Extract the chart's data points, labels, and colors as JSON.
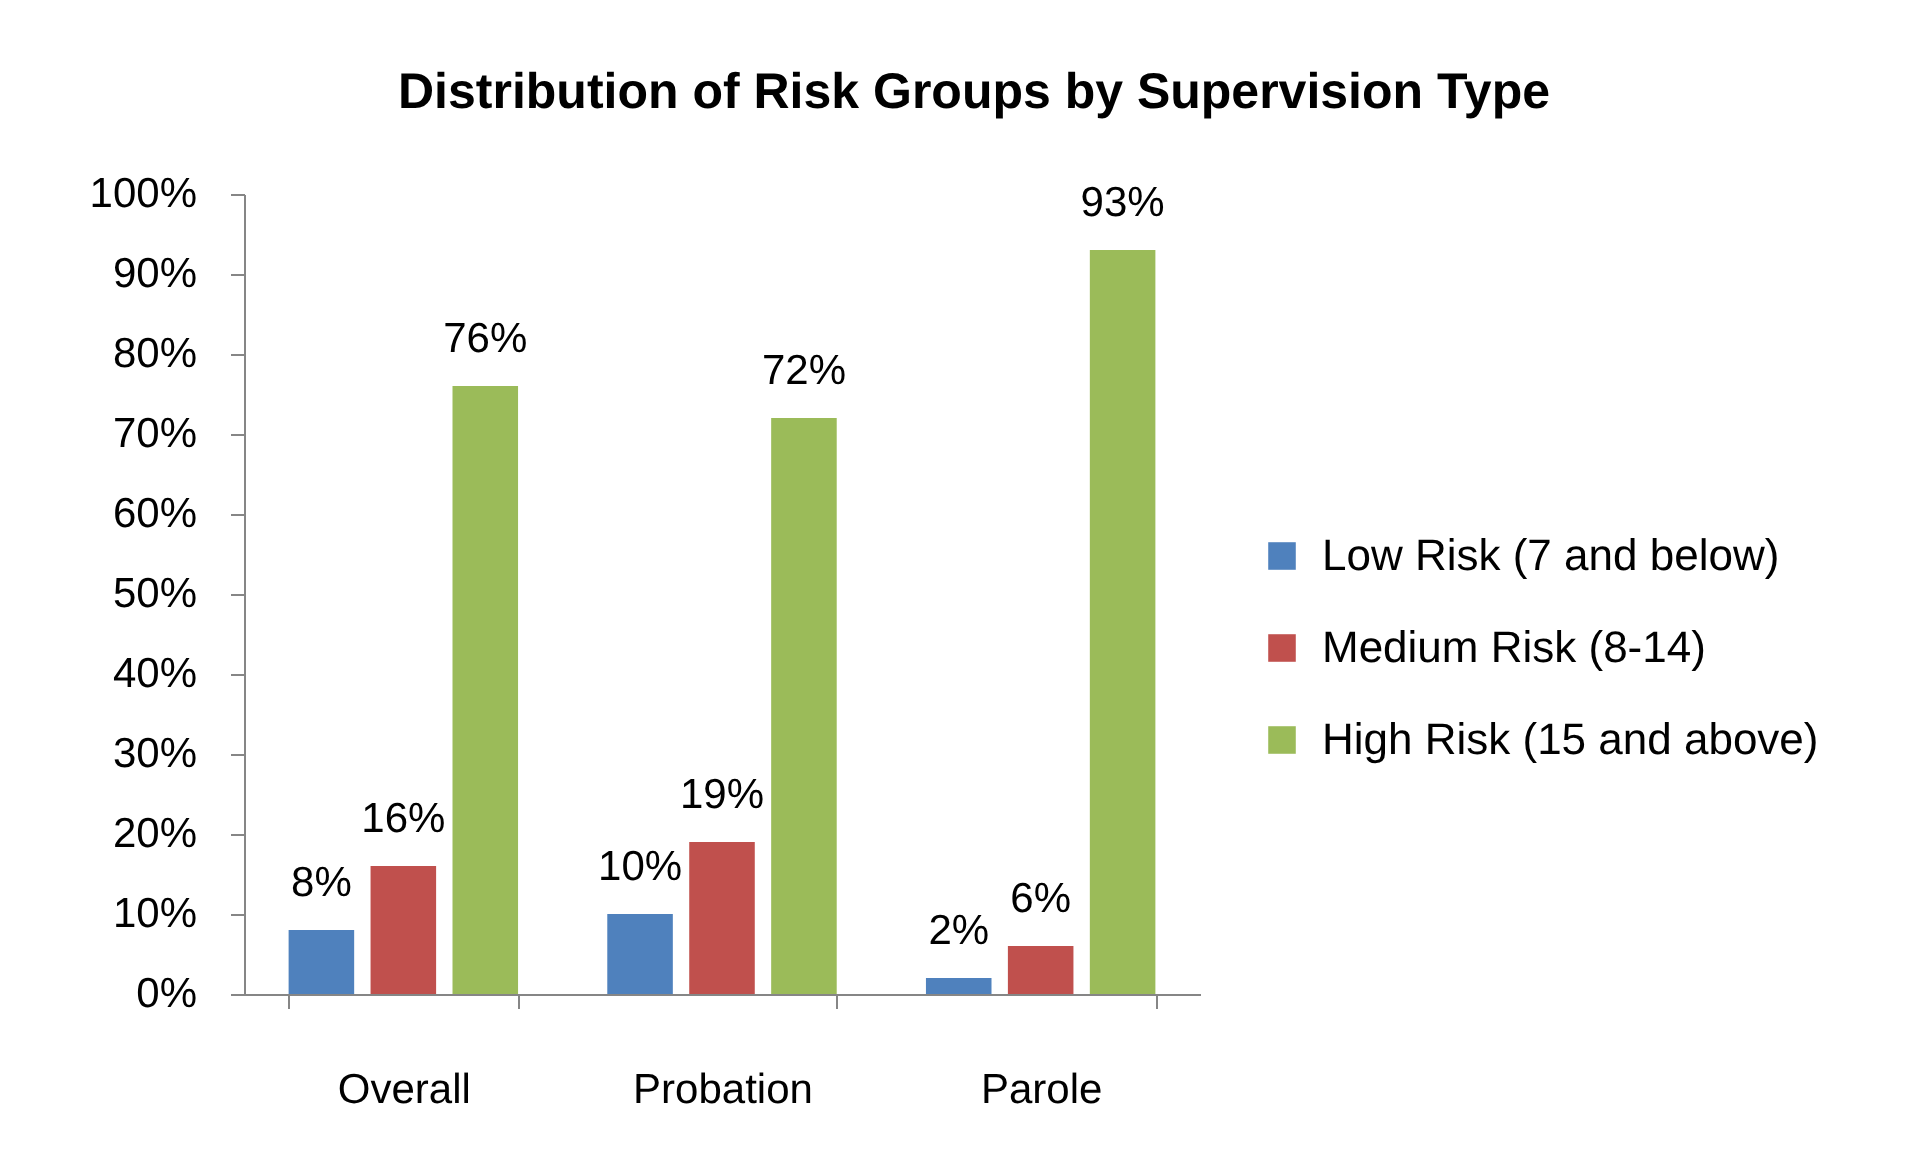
{
  "chart_data": {
    "type": "bar",
    "title": "Distribution of Risk Groups by Supervision Type",
    "categories": [
      "Overall",
      "Probation",
      "Parole"
    ],
    "series": [
      {
        "name": "Low Risk (7 and below)",
        "color": "#4f81bd",
        "values": [
          8,
          10,
          2
        ],
        "value_labels": [
          "8%",
          "10%",
          "2%"
        ]
      },
      {
        "name": "Medium Risk (8-14)",
        "color": "#c0504d",
        "values": [
          16,
          19,
          6
        ],
        "value_labels": [
          "16%",
          "19%",
          "6%"
        ]
      },
      {
        "name": "High Risk (15 and above)",
        "color": "#9bbb59",
        "values": [
          76,
          72,
          93
        ],
        "value_labels": [
          "76%",
          "72%",
          "93%"
        ]
      }
    ],
    "ylim": [
      0,
      100
    ],
    "yticks": [
      {
        "value": 0,
        "label": "0%"
      },
      {
        "value": 10,
        "label": "10%"
      },
      {
        "value": 20,
        "label": "20%"
      },
      {
        "value": 30,
        "label": "30%"
      },
      {
        "value": 40,
        "label": "40%"
      },
      {
        "value": 50,
        "label": "50%"
      },
      {
        "value": 60,
        "label": "60%"
      },
      {
        "value": 70,
        "label": "70%"
      },
      {
        "value": 80,
        "label": "80%"
      },
      {
        "value": 90,
        "label": "90%"
      },
      {
        "value": 100,
        "label": "100%"
      }
    ],
    "grid": false,
    "legend": "right"
  }
}
